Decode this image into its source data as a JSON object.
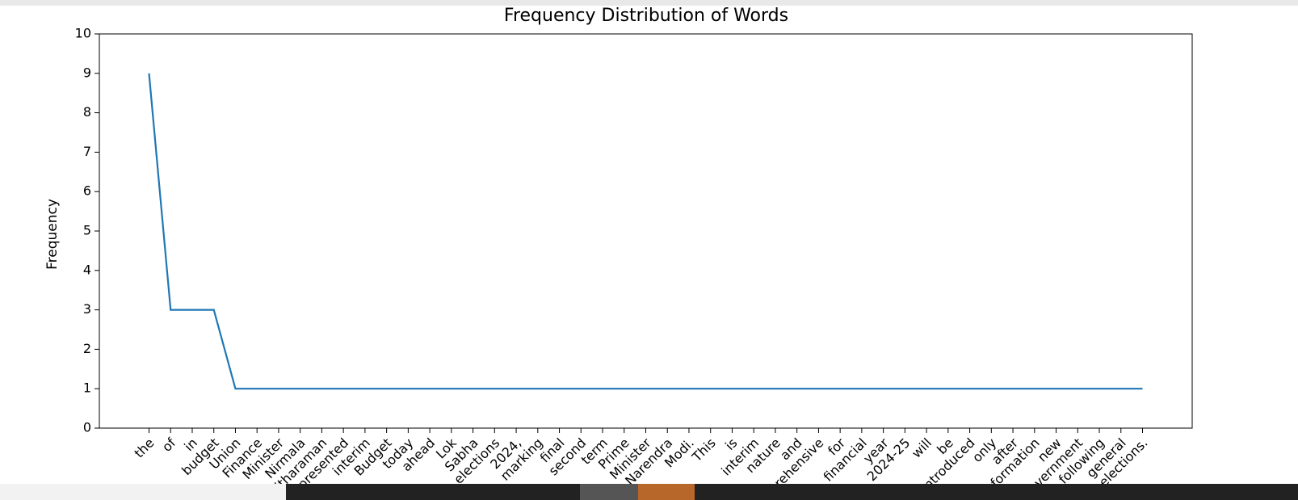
{
  "chart_data": {
    "type": "line",
    "title": "Frequency Distribution of Words",
    "y_label": "Frequency",
    "categories": [
      "the",
      "of",
      "in",
      "budget",
      "Union",
      "Finance",
      "Minister",
      "Nirmala",
      "Sitharaman",
      "presented",
      "interim",
      "Budget",
      "today",
      "ahead",
      "Lok",
      "Sabha",
      "elections",
      "2024,",
      "marking",
      "final",
      "second",
      "term",
      "Prime",
      "Minister",
      "Narendra",
      "Modi.",
      "This",
      "is",
      "interim",
      "nature",
      "and",
      "comprehensive",
      "for",
      "financial",
      "year",
      "2024-25",
      "will",
      "be",
      "introduced",
      "only",
      "after",
      "formation",
      "new",
      "government",
      "following",
      "general",
      "elections."
    ],
    "values": [
      9,
      3,
      3,
      3,
      1,
      1,
      1,
      1,
      1,
      1,
      1,
      1,
      1,
      1,
      1,
      1,
      1,
      1,
      1,
      1,
      1,
      1,
      1,
      1,
      1,
      1,
      1,
      1,
      1,
      1,
      1,
      1,
      1,
      1,
      1,
      1,
      1,
      1,
      1,
      1,
      1,
      1,
      1,
      1,
      1,
      1,
      1
    ],
    "color": "#1f77b4",
    "ylim": [
      0,
      10
    ],
    "yticks": [
      0,
      1,
      2,
      3,
      4,
      5,
      6,
      7,
      8,
      9,
      10
    ],
    "grid": false
  }
}
